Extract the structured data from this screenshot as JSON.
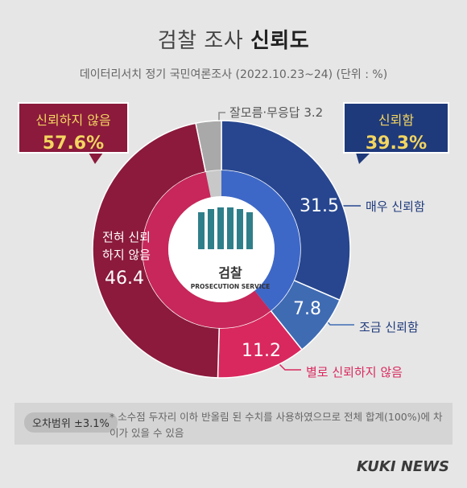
{
  "header": {
    "title_part1": "검찰 조사",
    "title_part2": "신뢰도",
    "subtitle": "데이터리서치 정기 국민여론조사 (2022.10.23~24)  (단위 : %)"
  },
  "callouts": {
    "distrust_label": "신뢰하지 않음",
    "distrust_value": "57.6%",
    "trust_label": "신뢰함",
    "trust_value": "39.3%",
    "unknown_note": "잘모름·무응답 3.2"
  },
  "slice_labels": {
    "very_trust_value": "31.5",
    "very_trust_label": "매우 신뢰함",
    "somewhat_trust_value": "7.8",
    "somewhat_trust_label": "조금 신뢰함",
    "not_much_value": "11.2",
    "not_much_label": "별로 신뢰하지 않음",
    "not_at_all_value": "46.4",
    "not_at_all_label_line1": "전혀 신뢰",
    "not_at_all_label_line2": "하지 않음"
  },
  "emblem": {
    "name": "검찰",
    "english": "PROSECUTION SERVICE"
  },
  "footer": {
    "margin_of_error": "오차범위 ±3.1%",
    "note": "* 소수점 두자리 이하 반올림 된 수치를 사용하였으므로 전체 합계(100%)에 차이가 있을 수 있음",
    "brand": "KUKI NEWS"
  },
  "colors": {
    "very_trust": "#27468f",
    "somewhat_trust": "#3f6bb3",
    "not_much": "#d9285e",
    "not_at_all": "#8b1a3c",
    "unknown": "#a9a9a9",
    "inner_trust": "#3e68c7",
    "inner_distrust": "#c7275a"
  },
  "chart_data": {
    "type": "pie",
    "title": "검찰 조사 신뢰도",
    "unit": "%",
    "series": [
      {
        "name": "매우 신뢰함",
        "value": 31.5,
        "group": "신뢰함"
      },
      {
        "name": "조금 신뢰함",
        "value": 7.8,
        "group": "신뢰함"
      },
      {
        "name": "별로 신뢰하지 않음",
        "value": 11.2,
        "group": "신뢰하지 않음"
      },
      {
        "name": "전혀 신뢰하지 않음",
        "value": 46.4,
        "group": "신뢰하지 않음"
      },
      {
        "name": "잘모름·무응답",
        "value": 3.2,
        "group": "잘모름·무응답"
      }
    ],
    "groups": [
      {
        "name": "신뢰함",
        "value": 39.3
      },
      {
        "name": "신뢰하지 않음",
        "value": 57.6
      },
      {
        "name": "잘모름·무응답",
        "value": 3.2
      }
    ]
  }
}
